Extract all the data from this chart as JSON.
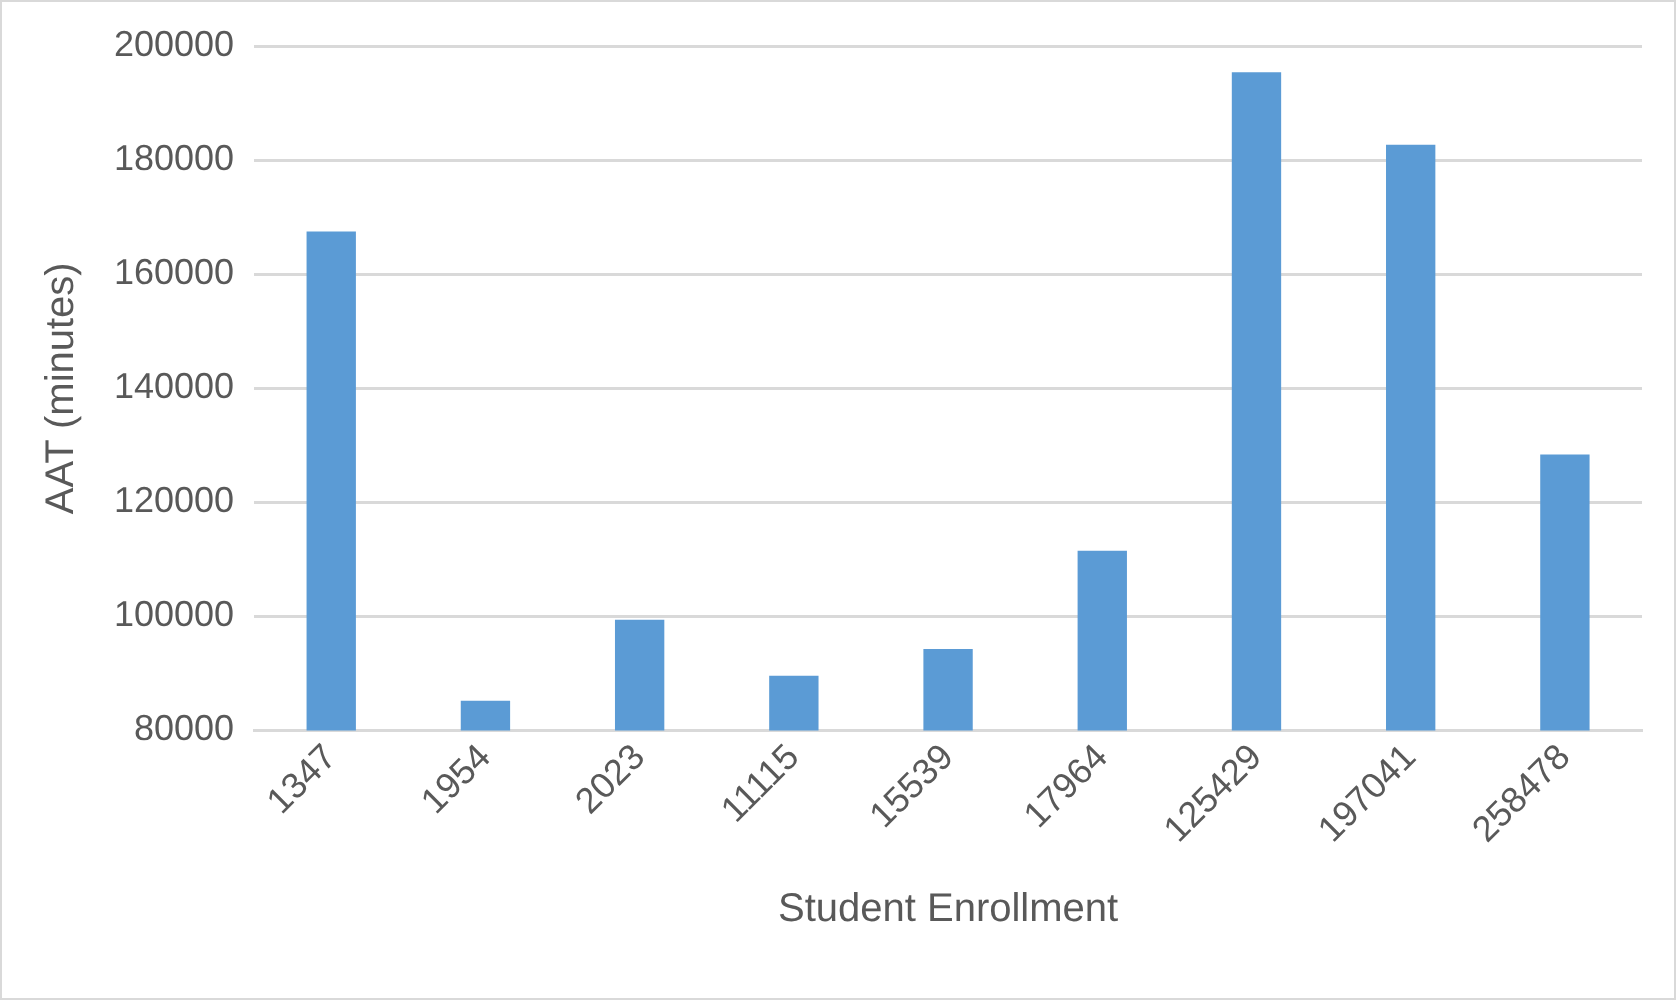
{
  "chart_data": {
    "type": "bar",
    "xlabel": "Student Enrollment",
    "ylabel": "AAT (minutes)",
    "categories": [
      "1347",
      "1954",
      "2023",
      "11115",
      "15539",
      "17964",
      "125429",
      "197041",
      "258478"
    ],
    "values": [
      167500,
      85200,
      99400,
      89600,
      94300,
      111500,
      195400,
      182700,
      128400
    ],
    "color": "#5b9bd5",
    "ylim": [
      80000,
      200000
    ],
    "yticks": [
      80000,
      100000,
      120000,
      140000,
      160000,
      180000,
      200000
    ],
    "grid": "y"
  }
}
